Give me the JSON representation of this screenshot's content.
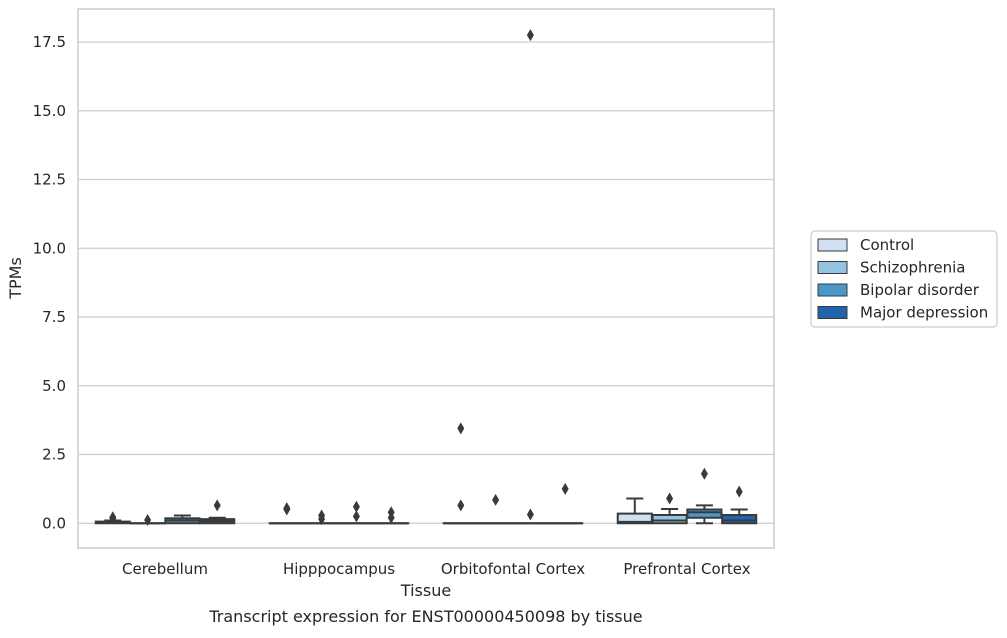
{
  "chart_data": {
    "type": "box",
    "title": "",
    "caption": "Transcript expression for ENST00000450098 by tissue",
    "xlabel": "Tissue",
    "ylabel": "TPMs",
    "categories": [
      "Cerebellum",
      "Hipppocampus",
      "Orbitofontal Cortex",
      "Prefrontal Cortex"
    ],
    "ylim": [
      -0.9,
      18.7
    ],
    "yticks": [
      0.0,
      2.5,
      5.0,
      7.5,
      10.0,
      12.5,
      15.0,
      17.5
    ],
    "ytick_labels": [
      "0.0",
      "2.5",
      "5.0",
      "7.5",
      "10.0",
      "12.5",
      "15.0",
      "17.5"
    ],
    "grid": true,
    "legend_position": "right",
    "series": [
      {
        "name": "Control",
        "color": "#d0e1f2",
        "boxes": [
          {
            "category": "Cerebellum",
            "q1": 0.0,
            "median": 0.03,
            "q3": 0.06,
            "whisker_low": 0.0,
            "whisker_high": 0.1,
            "outliers": [
              0.22,
              0.18
            ]
          },
          {
            "category": "Hipppocampus",
            "q1": 0.0,
            "median": 0.0,
            "q3": 0.0,
            "whisker_low": 0.0,
            "whisker_high": 0.0,
            "outliers": [
              0.55,
              0.5
            ]
          },
          {
            "category": "Orbitofontal Cortex",
            "q1": 0.0,
            "median": 0.0,
            "q3": 0.0,
            "whisker_low": 0.0,
            "whisker_high": 0.0,
            "outliers": [
              3.45,
              0.65
            ]
          },
          {
            "category": "Prefrontal Cortex",
            "q1": 0.0,
            "median": 0.05,
            "q3": 0.35,
            "whisker_low": 0.0,
            "whisker_high": 0.9,
            "outliers": []
          }
        ]
      },
      {
        "name": "Schizophrenia",
        "color": "#94c4df",
        "boxes": [
          {
            "category": "Cerebellum",
            "q1": 0.0,
            "median": 0.0,
            "q3": 0.0,
            "whisker_low": 0.0,
            "whisker_high": 0.0,
            "outliers": [
              0.12
            ]
          },
          {
            "category": "Hipppocampus",
            "q1": 0.0,
            "median": 0.0,
            "q3": 0.0,
            "whisker_low": 0.0,
            "whisker_high": 0.0,
            "outliers": [
              0.28,
              0.15
            ]
          },
          {
            "category": "Orbitofontal Cortex",
            "q1": 0.0,
            "median": 0.0,
            "q3": 0.0,
            "whisker_low": 0.0,
            "whisker_high": 0.0,
            "outliers": [
              0.85
            ]
          },
          {
            "category": "Prefrontal Cortex",
            "q1": 0.0,
            "median": 0.1,
            "q3": 0.3,
            "whisker_low": 0.0,
            "whisker_high": 0.52,
            "outliers": [
              0.9
            ]
          }
        ]
      },
      {
        "name": "Bipolar disorder",
        "color": "#4a98c9",
        "boxes": [
          {
            "category": "Cerebellum",
            "q1": 0.0,
            "median": 0.1,
            "q3": 0.18,
            "whisker_low": 0.0,
            "whisker_high": 0.28,
            "outliers": []
          },
          {
            "category": "Hipppocampus",
            "q1": 0.0,
            "median": 0.0,
            "q3": 0.0,
            "whisker_low": 0.0,
            "whisker_high": 0.0,
            "outliers": [
              0.6,
              0.25
            ]
          },
          {
            "category": "Orbitofontal Cortex",
            "q1": 0.0,
            "median": 0.0,
            "q3": 0.0,
            "whisker_low": 0.0,
            "whisker_high": 0.0,
            "outliers": [
              17.75,
              0.32
            ]
          },
          {
            "category": "Prefrontal Cortex",
            "q1": 0.2,
            "median": 0.4,
            "q3": 0.5,
            "whisker_low": 0.0,
            "whisker_high": 0.65,
            "outliers": [
              1.8
            ]
          }
        ]
      },
      {
        "name": "Major depression",
        "color": "#2164ab",
        "boxes": [
          {
            "category": "Cerebellum",
            "q1": 0.0,
            "median": 0.08,
            "q3": 0.15,
            "whisker_low": 0.0,
            "whisker_high": 0.2,
            "outliers": [
              0.65
            ]
          },
          {
            "category": "Hipppocampus",
            "q1": 0.0,
            "median": 0.0,
            "q3": 0.0,
            "whisker_low": 0.0,
            "whisker_high": 0.0,
            "outliers": [
              0.4,
              0.2
            ]
          },
          {
            "category": "Orbitofontal Cortex",
            "q1": 0.0,
            "median": 0.0,
            "q3": 0.0,
            "whisker_low": 0.0,
            "whisker_high": 0.0,
            "outliers": [
              1.25
            ]
          },
          {
            "category": "Prefrontal Cortex",
            "q1": 0.0,
            "median": 0.1,
            "q3": 0.3,
            "whisker_low": 0.0,
            "whisker_high": 0.5,
            "outliers": [
              1.15
            ]
          }
        ]
      }
    ]
  }
}
